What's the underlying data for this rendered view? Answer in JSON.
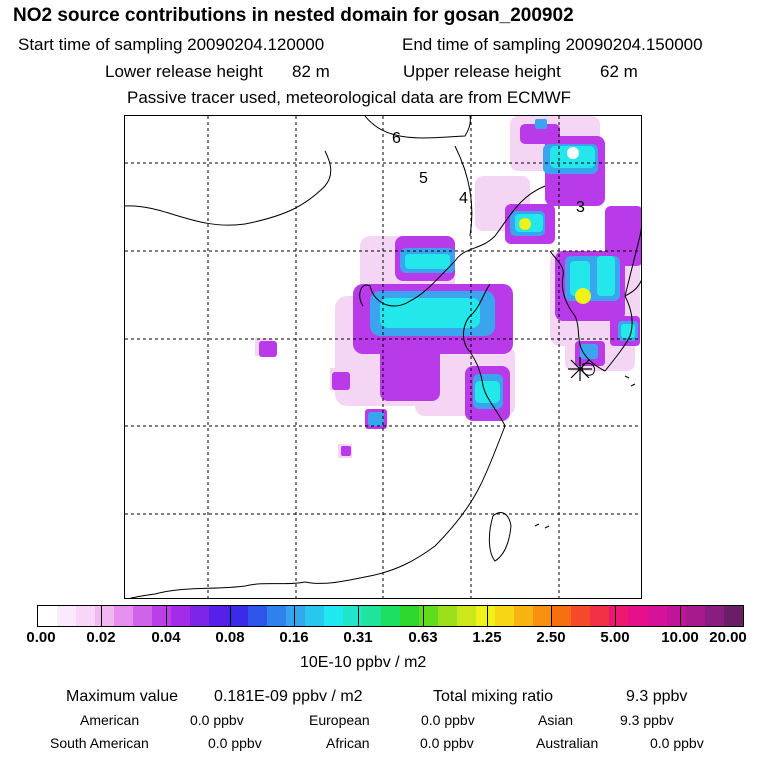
{
  "header": {
    "title": "NO2 source contributions in nested domain for gosan_200902",
    "start_label": "Start time of sampling 20090204.120000",
    "end_label": "End time of sampling 20090204.150000",
    "lower_label": "Lower release height",
    "lower_value": "82 m",
    "upper_label": "Upper release height",
    "upper_value": "62 m",
    "tracer_note": "Passive tracer used, meteorological data are from ECMWF"
  },
  "map": {
    "region_labels": [
      "6",
      "5",
      "4",
      "3"
    ],
    "receptor_marker": "asterisk-icon",
    "colors": {
      "low": "#f5d8f5",
      "mid": "#a22ce8",
      "cyan": "#23e7ea",
      "blue": "#3aa4ee",
      "yellow": "#eef218",
      "coast": "#000000"
    }
  },
  "legend": {
    "ticks": [
      "0.00",
      "0.02",
      "0.04",
      "0.08",
      "0.16",
      "0.31",
      "0.63",
      "1.25",
      "2.50",
      "5.00",
      "10.00",
      "20.00"
    ],
    "units": "10E-10 ppbv / m2",
    "colors": [
      "#ffffff",
      "#fbeafb",
      "#f7d6f7",
      "#f0b8f0",
      "#e590ec",
      "#cf63ea",
      "#bb3fe9",
      "#a22ce8",
      "#7c26e8",
      "#5720e8",
      "#3a2be8",
      "#2e54ea",
      "#2f82ed",
      "#33a6ee",
      "#27c8f0",
      "#1fe8ee",
      "#1fe6c8",
      "#1fe49a",
      "#1ddf62",
      "#2cd82c",
      "#5fdc1c",
      "#9be01a",
      "#cce81a",
      "#eef218",
      "#f7d616",
      "#f7b312",
      "#f7900f",
      "#f66f10",
      "#f54a2a",
      "#f23046",
      "#ef1870",
      "#e8108a",
      "#d6129a",
      "#c01598",
      "#a41a8e",
      "#881e80",
      "#6a1e6a"
    ]
  },
  "stats": {
    "max_label": "Maximum value",
    "max_value": "0.181E-09 ppbv / m2",
    "total_label": "Total mixing ratio",
    "total_value": "9.3 ppbv",
    "american_label": "American",
    "american_value": "0.0 ppbv",
    "european_label": "European",
    "european_value": "0.0 ppbv",
    "asian_label": "Asian",
    "asian_value": "9.3 ppbv",
    "south_american_label": "South American",
    "south_american_value": "0.0 ppbv",
    "african_label": "African",
    "african_value": "0.0 ppbv",
    "australian_label": "Australian",
    "australian_value": "0.0 ppbv"
  }
}
